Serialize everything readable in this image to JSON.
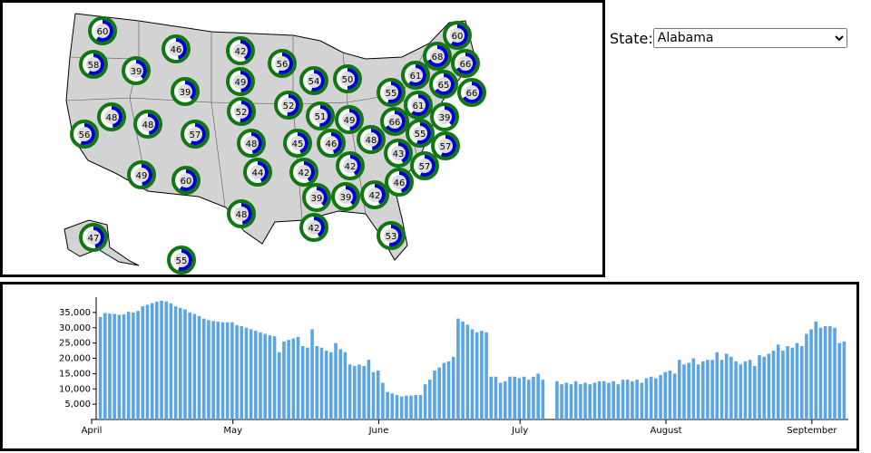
{
  "state_selector": {
    "label": "State:",
    "selected": "Alabama"
  },
  "chart_data": [
    {
      "type": "donut-map",
      "values": [
        60,
        58,
        39,
        46,
        42,
        56,
        54,
        50,
        60,
        68,
        66,
        61,
        65,
        66,
        55,
        61,
        49,
        39,
        52,
        51,
        49,
        66,
        39,
        48,
        48,
        52,
        56,
        57,
        48,
        45,
        46,
        48,
        55,
        57,
        43,
        57,
        42,
        49,
        60,
        44,
        42,
        46,
        39,
        39,
        42,
        48,
        42,
        53,
        47,
        55
      ],
      "color": "#0000cc",
      "ring_color": "#117711"
    },
    {
      "type": "bar",
      "color": "#5aa5e6",
      "ylim": [
        0,
        40000
      ],
      "yticks": [
        {
          "value": 5000,
          "label": "5,000"
        },
        {
          "value": 10000,
          "label": "10,000"
        },
        {
          "value": 15000,
          "label": "15,000"
        },
        {
          "value": 20000,
          "label": "20,000"
        },
        {
          "value": 25000,
          "label": "25,000"
        },
        {
          "value": 30000,
          "label": "30,000"
        },
        {
          "value": 35000,
          "label": "35,000"
        }
      ],
      "categories": [
        "April",
        null,
        null,
        null,
        null,
        null,
        null,
        null,
        null,
        null,
        null,
        null,
        null,
        null,
        null,
        null,
        null,
        null,
        null,
        null,
        null,
        null,
        null,
        null,
        null,
        null,
        null,
        null,
        null,
        null,
        "May",
        null,
        null,
        null,
        null,
        null,
        null,
        null,
        null,
        null,
        null,
        null,
        null,
        null,
        null,
        null,
        null,
        null,
        null,
        null,
        null,
        null,
        null,
        null,
        null,
        null,
        null,
        null,
        null,
        null,
        null,
        "June",
        null,
        null,
        null,
        null,
        null,
        null,
        null,
        null,
        null,
        null,
        null,
        null,
        null,
        null,
        null,
        null,
        null,
        null,
        null,
        null,
        null,
        null,
        null,
        null,
        null,
        null,
        null,
        null,
        null,
        "July",
        null,
        null,
        null,
        null,
        null,
        null,
        null,
        null,
        null,
        null,
        null,
        null,
        null,
        null,
        null,
        null,
        null,
        null,
        null,
        null,
        null,
        null,
        null,
        null,
        null,
        null,
        null,
        null,
        null,
        null,
        "August",
        null,
        null,
        null,
        null,
        null,
        null,
        null,
        null,
        null,
        null,
        null,
        null,
        null,
        null,
        null,
        null,
        null,
        null,
        null,
        null,
        null,
        null,
        null,
        null,
        null,
        null,
        null,
        null,
        null,
        null,
        "September",
        null,
        null,
        null,
        null,
        null
      ],
      "values": [
        33500,
        34800,
        34600,
        34500,
        34200,
        34400,
        35200,
        35000,
        35500,
        37000,
        37500,
        38000,
        38500,
        38800,
        38600,
        38000,
        37000,
        36500,
        36000,
        35000,
        34500,
        33800,
        33000,
        32500,
        32200,
        32000,
        31800,
        31800,
        31800,
        30800,
        30500,
        30000,
        29500,
        29000,
        28500,
        28000,
        27500,
        27200,
        22000,
        25500,
        26000,
        26500,
        27000,
        24000,
        23500,
        29500,
        24000,
        23500,
        22500,
        22000,
        25000,
        23000,
        22000,
        18000,
        17500,
        18000,
        17500,
        19500,
        15500,
        16000,
        12000,
        9000,
        8500,
        8000,
        7500,
        7800,
        7800,
        8000,
        8000,
        11500,
        13000,
        16000,
        17000,
        18500,
        19000,
        20500,
        33000,
        32000,
        31000,
        29500,
        28500,
        29000,
        28500,
        14000,
        14000,
        12000,
        12500,
        14000,
        14000,
        13500,
        14000,
        13000,
        14000,
        15000,
        13000,
        null,
        null,
        12500,
        11500,
        12000,
        11500,
        12500,
        11500,
        12000,
        11500,
        12000,
        12500,
        12500,
        12000,
        12500,
        11500,
        13000,
        13000,
        12500,
        13000,
        12000,
        13500,
        14000,
        13500,
        14500,
        15500,
        16000,
        15000,
        19500,
        18000,
        18500,
        20000,
        18000,
        19000,
        19500,
        19500,
        22000,
        19500,
        21500,
        20500,
        19000,
        18000,
        19000,
        19500,
        17500,
        21000,
        20500,
        21500,
        22500,
        24500,
        22500,
        24000,
        23500,
        25000,
        24000,
        28000,
        29500,
        32000,
        30000,
        30500,
        30500,
        30000,
        25000,
        25500
      ]
    }
  ]
}
